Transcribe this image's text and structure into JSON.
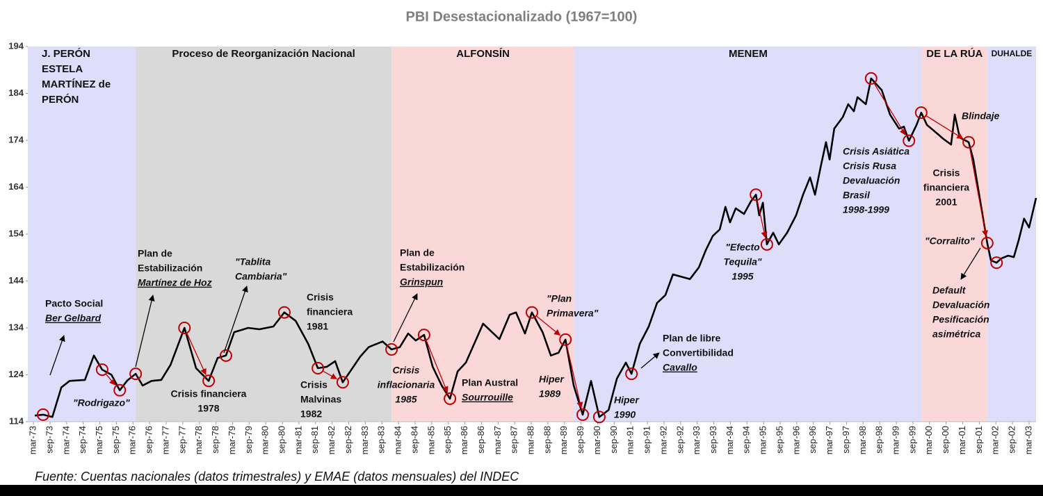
{
  "chart_data": {
    "type": "line",
    "title": "PBI Desestacionalizado (1967=100)",
    "source": "Fuente: Cuentas nacionales (datos trimestrales) y EMAE (datos mensuales) del INDEC",
    "xlim": [
      1972.83,
      2003.21
    ],
    "ylim": [
      114,
      194
    ],
    "yticks": [
      114,
      124,
      134,
      144,
      154,
      164,
      174,
      184,
      194
    ],
    "xticks": [
      {
        "value": 1973,
        "label": "mar-73"
      },
      {
        "value": 1973.5,
        "label": "sep-73"
      },
      {
        "value": 1974,
        "label": "mar-74"
      },
      {
        "value": 1974.5,
        "label": "sep-74"
      },
      {
        "value": 1975,
        "label": "mar-75"
      },
      {
        "value": 1975.5,
        "label": "sep-75"
      },
      {
        "value": 1976,
        "label": "mar-76"
      },
      {
        "value": 1976.5,
        "label": "sep-76"
      },
      {
        "value": 1977,
        "label": "mar-77"
      },
      {
        "value": 1977.5,
        "label": "sep-77"
      },
      {
        "value": 1978,
        "label": "mar-78"
      },
      {
        "value": 1978.5,
        "label": "sep-78"
      },
      {
        "value": 1979,
        "label": "mar-79"
      },
      {
        "value": 1979.5,
        "label": "sep-79"
      },
      {
        "value": 1980,
        "label": "mar-80"
      },
      {
        "value": 1980.5,
        "label": "sep-80"
      },
      {
        "value": 1981,
        "label": "mar-81"
      },
      {
        "value": 1981.5,
        "label": "sep-81"
      },
      {
        "value": 1982,
        "label": "mar-82"
      },
      {
        "value": 1982.5,
        "label": "sep-82"
      },
      {
        "value": 1983,
        "label": "mar-83"
      },
      {
        "value": 1983.5,
        "label": "sep-83"
      },
      {
        "value": 1984,
        "label": "mar-84"
      },
      {
        "value": 1984.5,
        "label": "sep-84"
      },
      {
        "value": 1985,
        "label": "mar-85"
      },
      {
        "value": 1985.5,
        "label": "sep-85"
      },
      {
        "value": 1986,
        "label": "mar-86"
      },
      {
        "value": 1986.5,
        "label": "sep-86"
      },
      {
        "value": 1987,
        "label": "mar-87"
      },
      {
        "value": 1987.5,
        "label": "sep-87"
      },
      {
        "value": 1988,
        "label": "mar-88"
      },
      {
        "value": 1988.5,
        "label": "sep-88"
      },
      {
        "value": 1989,
        "label": "mar-89"
      },
      {
        "value": 1989.5,
        "label": "sep-89"
      },
      {
        "value": 1990,
        "label": "mar-90"
      },
      {
        "value": 1990.5,
        "label": "sep-90"
      },
      {
        "value": 1991,
        "label": "mar-91"
      },
      {
        "value": 1991.5,
        "label": "sep-91"
      },
      {
        "value": 1992,
        "label": "mar-92"
      },
      {
        "value": 1992.5,
        "label": "sep-92"
      },
      {
        "value": 1993,
        "label": "mar-93"
      },
      {
        "value": 1993.5,
        "label": "sep-93"
      },
      {
        "value": 1994,
        "label": "mar-94"
      },
      {
        "value": 1994.5,
        "label": "sep-94"
      },
      {
        "value": 1995,
        "label": "mar-95"
      },
      {
        "value": 1995.5,
        "label": "sep-95"
      },
      {
        "value": 1996,
        "label": "mar-96"
      },
      {
        "value": 1996.5,
        "label": "sep-96"
      },
      {
        "value": 1997,
        "label": "mar-97"
      },
      {
        "value": 1997.5,
        "label": "sep-97"
      },
      {
        "value": 1998,
        "label": "mar-98"
      },
      {
        "value": 1998.5,
        "label": "sep-98"
      },
      {
        "value": 1999,
        "label": "mar-99"
      },
      {
        "value": 1999.5,
        "label": "sep-99"
      },
      {
        "value": 2000,
        "label": "mar-00"
      },
      {
        "value": 2000.5,
        "label": "sep-00"
      },
      {
        "value": 2001,
        "label": "mar-01"
      },
      {
        "value": 2001.5,
        "label": "sep-01"
      },
      {
        "value": 2002,
        "label": "mar-02"
      },
      {
        "value": 2002.5,
        "label": "sep-02"
      },
      {
        "value": 2003,
        "label": "mar-03"
      }
    ],
    "periods": [
      {
        "lines": [
          "J. PERÓN",
          "ESTELA",
          "MARTÍNEZ de",
          "PERÓN"
        ],
        "color": "#dedefb"
      },
      {
        "lines": [
          "Proceso de Reorganización Nacional"
        ],
        "start": 1976.08,
        "color": "#d9d9d9"
      },
      {
        "lines": [
          "ALFONSÍN"
        ],
        "start": 1983.79,
        "color": "#fbd8d8"
      },
      {
        "lines": [
          "MENEM"
        ],
        "start": 1989.3,
        "color": "#dedefb"
      },
      {
        "lines": [
          "DE LA RÚA"
        ],
        "start": 1999.77,
        "color": "#fbd8d8"
      },
      {
        "lines": [
          "DUHALDE"
        ],
        "start": 2001.74,
        "color": "#dedefb"
      }
    ],
    "series": [
      {
        "name": "PBI",
        "color": "#000000",
        "x": [
          1973.04,
          1973.29,
          1973.57,
          1973.84,
          1974.09,
          1974.55,
          1974.82,
          1975.07,
          1975.35,
          1975.6,
          1975.83,
          1976.08,
          1976.29,
          1976.56,
          1976.85,
          1977.13,
          1977.55,
          1977.9,
          1978.28,
          1978.55,
          1978.8,
          1979.05,
          1979.47,
          1979.81,
          1980.23,
          1980.56,
          1980.9,
          1981.28,
          1981.57,
          1981.84,
          1982.09,
          1982.32,
          1982.57,
          1982.85,
          1983.1,
          1983.52,
          1983.79,
          1984.04,
          1984.29,
          1984.52,
          1984.77,
          1985.03,
          1985.3,
          1985.55,
          1985.78,
          1986.03,
          1986.55,
          1987.04,
          1987.35,
          1987.54,
          1987.81,
          1988.02,
          1988.34,
          1988.59,
          1988.82,
          1989.03,
          1989.28,
          1989.55,
          1989.8,
          1990.05,
          1990.33,
          1990.58,
          1990.85,
          1991.02,
          1991.27,
          1991.54,
          1991.79,
          1992.04,
          1992.27,
          1992.78,
          1993.05,
          1993.26,
          1993.47,
          1993.68,
          1993.85,
          1993.99,
          1994.16,
          1994.41,
          1994.62,
          1994.77,
          1994.87,
          1994.98,
          1995.1,
          1995.29,
          1995.46,
          1995.71,
          1995.98,
          1996.19,
          1996.4,
          1996.55,
          1996.72,
          1996.88,
          1996.99,
          1997.13,
          1997.39,
          1997.55,
          1997.72,
          1997.83,
          1998.08,
          1998.24,
          1998.56,
          1998.81,
          1999.08,
          1999.23,
          1999.38,
          1999.61,
          1999.75,
          1999.92,
          2000.17,
          2000.42,
          2000.65,
          2000.76,
          2000.91,
          2001.18,
          2001.32,
          2001.53,
          2001.74,
          2001.85,
          2002.02,
          2002.16,
          2002.37,
          2002.54,
          2002.69,
          2002.85,
          2003.0,
          2003.21
        ],
        "values": [
          115.3,
          115.5,
          115.0,
          121.3,
          122.7,
          122.9,
          128.1,
          125.1,
          124.0,
          120.7,
          122.8,
          124.2,
          121.7,
          122.7,
          122.9,
          126.1,
          134.0,
          125.4,
          122.7,
          127.6,
          128.1,
          133.1,
          134.0,
          133.7,
          134.3,
          137.3,
          135.5,
          130.6,
          125.4,
          125.7,
          126.9,
          122.4,
          125.0,
          127.9,
          129.9,
          131.1,
          129.4,
          129.9,
          132.8,
          131.3,
          132.5,
          125.7,
          121.7,
          118.9,
          124.7,
          126.6,
          134.9,
          131.6,
          136.8,
          137.3,
          132.8,
          137.3,
          133.1,
          128.1,
          128.7,
          131.5,
          121.7,
          115.5,
          122.7,
          115.0,
          116.5,
          123.2,
          126.6,
          124.2,
          130.6,
          134.3,
          139.3,
          141.0,
          145.4,
          144.4,
          146.9,
          150.6,
          153.6,
          155.0,
          159.8,
          156.5,
          159.5,
          158.3,
          161.0,
          162.4,
          158.0,
          160.7,
          151.8,
          154.3,
          151.8,
          154.3,
          158.0,
          162.4,
          166.1,
          162.4,
          168.3,
          173.6,
          169.9,
          176.5,
          179.0,
          181.7,
          180.2,
          183.2,
          181.7,
          187.2,
          184.7,
          179.5,
          176.5,
          176.9,
          173.9,
          177.3,
          179.9,
          177.3,
          175.8,
          174.3,
          173.1,
          179.5,
          174.6,
          173.6,
          169.9,
          161.0,
          152.1,
          148.4,
          147.9,
          148.8,
          149.4,
          149.1,
          152.8,
          157.3,
          155.4,
          161.7
        ]
      }
    ],
    "annotations": [
      {
        "lines": [
          "Pacto Social",
          "Ber Gelbard"
        ]
      },
      {
        "lines": [
          "\"Rodrigazo\""
        ]
      },
      {
        "lines": [
          "Plan de",
          "Estabilización",
          "Martínez de Hoz"
        ]
      },
      {
        "lines": [
          "Crisis financiera",
          "1978"
        ]
      },
      {
        "lines": [
          "\"Tablita",
          "Cambiaria\""
        ]
      },
      {
        "lines": [
          "Crisis",
          "financiera",
          "1981"
        ]
      },
      {
        "lines": [
          "Crisis",
          "Malvinas",
          "1982"
        ]
      },
      {
        "lines": [
          "Plan de",
          "Estabilización",
          "Grinspun"
        ]
      },
      {
        "lines": [
          "Crisis",
          "inflacionaria",
          "1985"
        ]
      },
      {
        "lines": [
          "Plan Austral",
          "Sourrouille"
        ]
      },
      {
        "lines": [
          "\"Plan",
          "Primavera\""
        ]
      },
      {
        "lines": [
          "Hiper",
          "1989"
        ]
      },
      {
        "lines": [
          "Hiper",
          "1990"
        ]
      },
      {
        "lines": [
          "Plan de libre",
          "Convertibilidad",
          "Cavallo"
        ]
      },
      {
        "lines": [
          "\"Efecto",
          "Tequila\"",
          "1995"
        ]
      },
      {
        "lines": [
          "Crisis Asiática",
          "Crisis Rusa",
          "Devaluación",
          "Brasil",
          "1998-1999"
        ]
      },
      {
        "lines": [
          "Blindaje"
        ]
      },
      {
        "lines": [
          "Crisis",
          "financiera",
          "2001"
        ]
      },
      {
        "lines": [
          "\"Corralito\""
        ]
      },
      {
        "lines": [
          "Default",
          "Devaluación",
          "Pesificación",
          "asimétrica"
        ]
      }
    ]
  }
}
